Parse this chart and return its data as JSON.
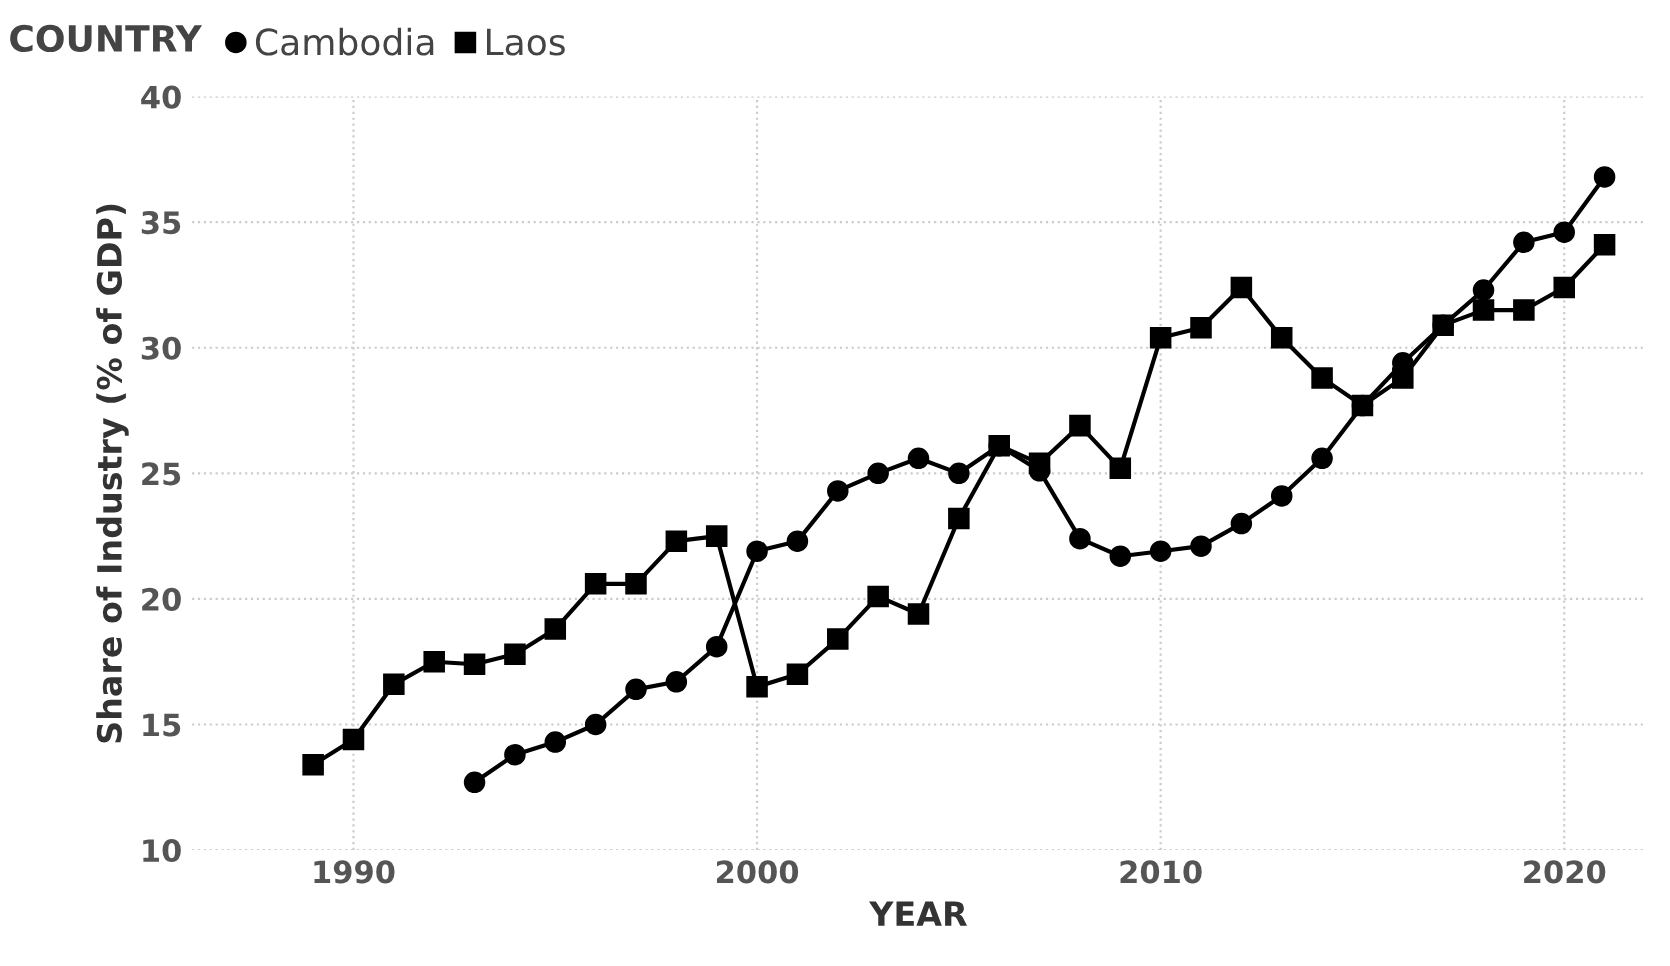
{
  "chart_data": {
    "type": "line",
    "xlabel": "YEAR",
    "ylabel": "Share of Industry (% of GDP)",
    "legend_title": "COUNTRY",
    "legend": "top left",
    "grid": true,
    "line_style": "solid",
    "xlim": [
      1986,
      2022
    ],
    "xticks": [
      1990,
      2000,
      2010,
      2020
    ],
    "ylim": [
      10,
      40
    ],
    "yticks": [
      10,
      15,
      20,
      25,
      30,
      35,
      40
    ],
    "series": [
      {
        "name": "Cambodia",
        "color": "#000000",
        "marker": "circle",
        "x": [
          1993,
          1994,
          1995,
          1996,
          1997,
          1998,
          1999,
          2000,
          2001,
          2002,
          2003,
          2004,
          2005,
          2006,
          2007,
          2008,
          2009,
          2010,
          2011,
          2012,
          2013,
          2014,
          2015,
          2016,
          2017,
          2018,
          2019,
          2020,
          2021
        ],
        "values": [
          12.7,
          13.8,
          14.3,
          15.0,
          16.4,
          16.7,
          18.1,
          21.9,
          22.3,
          24.3,
          25.0,
          25.6,
          25.0,
          26.1,
          25.1,
          22.4,
          21.7,
          21.9,
          22.1,
          23.0,
          24.1,
          25.6,
          27.7,
          29.4,
          30.9,
          32.3,
          34.2,
          34.6,
          36.8
        ]
      },
      {
        "name": "Laos",
        "color": "#000000",
        "marker": "square",
        "x": [
          1989,
          1990,
          1991,
          1992,
          1993,
          1994,
          1995,
          1996,
          1997,
          1998,
          1999,
          2000,
          2001,
          2002,
          2003,
          2004,
          2005,
          2006,
          2007,
          2008,
          2009,
          2010,
          2011,
          2012,
          2013,
          2014,
          2015,
          2016,
          2017,
          2018,
          2019,
          2020,
          2021
        ],
        "values": [
          13.4,
          14.4,
          16.6,
          17.5,
          17.4,
          17.8,
          18.8,
          20.6,
          20.6,
          22.3,
          22.5,
          16.5,
          17.0,
          18.4,
          20.1,
          19.4,
          23.2,
          26.1,
          25.4,
          26.9,
          25.2,
          30.4,
          30.8,
          32.4,
          30.4,
          28.8,
          27.7,
          28.8,
          30.9,
          31.5,
          31.5,
          32.4,
          34.1
        ]
      }
    ]
  }
}
